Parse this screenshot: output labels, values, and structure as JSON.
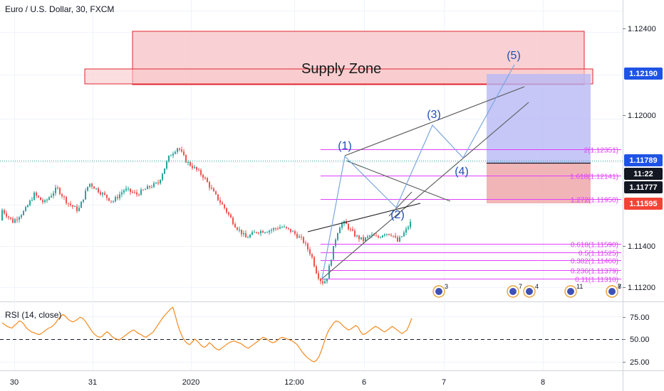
{
  "header": {
    "symbol_title": "Euro / U.S. Dollar, 30, FXCM"
  },
  "rsi_panel": {
    "title": "RSI (14, close)",
    "ticks": [
      "75.00",
      "50.00",
      "25.00"
    ]
  },
  "colors": {
    "bull": "#26a69a",
    "bear": "#ef5350",
    "supply_fill": "#f8c9cc",
    "supply_border": "#e0262f",
    "fib_line": "#e040fb",
    "fib_text": "#e040fb",
    "wave_label": "#1e4fb3",
    "wave_path": "#7aa7e0",
    "rsi_line": "#f58a1f",
    "last_price_bg": "#131722",
    "target_bg": "#1e53e5",
    "stop_bg": "#f44336",
    "entry_bg": "#1e53e5",
    "long_fill": "#b8b9f5",
    "short_fill": "#f0adb0"
  },
  "chart_data": {
    "type": "candlestick",
    "symbol": "EUR/USD",
    "timeframe": "30",
    "x_axis_labels": [
      "30",
      "31",
      "2020",
      "12:00",
      "6",
      "7",
      "8"
    ],
    "y_axis_ticks": [
      "1.12400",
      "1.12000",
      "1.11400",
      "1.11200"
    ],
    "ylim": [
      1.1116,
      1.1248
    ],
    "price_scale_tags": [
      {
        "label": "1.12190",
        "kind": "target"
      },
      {
        "label": "1.11789",
        "kind": "entry"
      },
      {
        "label": "11:22",
        "kind": "countdown"
      },
      {
        "label": "1.11777",
        "kind": "last"
      },
      {
        "label": "1.11595",
        "kind": "stop"
      }
    ],
    "supply_zone": {
      "label": "Supply Zone",
      "price_top": 1.1238,
      "price_bottom": 1.12145
    },
    "fib_levels": [
      {
        "label": "2(1.12351)",
        "price": 1.12351
      },
      {
        "label": "1.618(1.12141)",
        "price": 1.12141
      },
      {
        "label": "1.272(1.11950)",
        "price": 1.1195
      },
      {
        "label": "0.618(1.11590)",
        "price": 1.1159
      },
      {
        "label": "0.5(1.11525)",
        "price": 1.11525
      },
      {
        "label": "0.382(1.11460)",
        "price": 1.1146
      },
      {
        "label": "0.236(1.11379)",
        "price": 1.11379
      },
      {
        "label": "0.11(1.11310)",
        "price": 1.1131
      }
    ],
    "wave_labels": [
      "(1)",
      "(2)",
      "(3)",
      "(4)",
      "(5)"
    ],
    "event_badges": [
      {
        "count": "3"
      },
      {
        "count": "7"
      },
      {
        "count": "4"
      },
      {
        "count": "11"
      },
      {
        "count": "8"
      },
      {
        "count": "7"
      }
    ],
    "rsi": {
      "series_name": "RSI (14, close)",
      "ylim": [
        15,
        90
      ],
      "reference_line": 50,
      "values": [
        68,
        66,
        64,
        63,
        62,
        65,
        67,
        70,
        69,
        66,
        62,
        60,
        58,
        57,
        56,
        55,
        56,
        58,
        60,
        62,
        63,
        65,
        68,
        72,
        75,
        77,
        75,
        72,
        70,
        69,
        70,
        72,
        74,
        73,
        70,
        66,
        62,
        58,
        55,
        53,
        52,
        53,
        56,
        58,
        56,
        53,
        51,
        50,
        49,
        51,
        53,
        55,
        57,
        59,
        60,
        58,
        56,
        55,
        53,
        52,
        54,
        56,
        58,
        62,
        66,
        70,
        74,
        77,
        80,
        83,
        85,
        76,
        66,
        58,
        52,
        48,
        45,
        44,
        47,
        50,
        48,
        45,
        42,
        41,
        43,
        46,
        44,
        41,
        39,
        38,
        40,
        42,
        44,
        46,
        47,
        48,
        47,
        46,
        45,
        43,
        41,
        40,
        42,
        44,
        46,
        48,
        50,
        52,
        51,
        49,
        47,
        46,
        47,
        49,
        51,
        52,
        51,
        50,
        49,
        48,
        46,
        44,
        40,
        36,
        33,
        30,
        28,
        26,
        25,
        27,
        31,
        38,
        46,
        54,
        60,
        64,
        68,
        70,
        69,
        67,
        64,
        62,
        60,
        61,
        63,
        65,
        63,
        58,
        55,
        56,
        58,
        60,
        62,
        64,
        63,
        61,
        59,
        58,
        60,
        62,
        64,
        62,
        60,
        58,
        56,
        58,
        60,
        66,
        73
      ]
    }
  }
}
